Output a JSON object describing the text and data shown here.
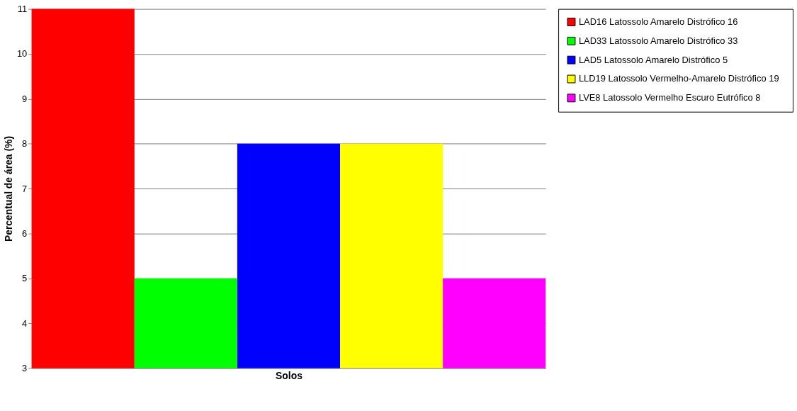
{
  "chart_data": {
    "type": "bar",
    "xlabel": "Solos",
    "ylabel": "Percentual de área (%)",
    "categories": [
      null,
      null,
      null,
      null,
      null
    ],
    "series": [
      {
        "name": "LAD16   Latossolo Amarelo Distrófico 16",
        "color": "#ff0000",
        "values": [
          11,
          null,
          null,
          null,
          null
        ]
      },
      {
        "name": "LAD33   Latossolo Amarelo Distrófico 33",
        "color": "#00ff00",
        "values": [
          null,
          5,
          null,
          null,
          null
        ]
      },
      {
        "name": "LAD5   Latossolo Amarelo Distrófico 5",
        "color": "#0000ff",
        "values": [
          null,
          null,
          8,
          null,
          null
        ]
      },
      {
        "name": "LLD19   Latossolo Vermelho-Amarelo Distrófico 19",
        "color": "#ffff00",
        "values": [
          null,
          null,
          null,
          8,
          null
        ]
      },
      {
        "name": "LVE8   Latossolo Vermelho Escuro Eutrófico 8",
        "color": "#ff00ff",
        "values": [
          null,
          null,
          null,
          null,
          5
        ]
      }
    ],
    "ylim": [
      3,
      11
    ],
    "yticks": [
      3,
      4,
      5,
      6,
      7,
      8,
      9,
      10,
      11
    ],
    "grid": "y",
    "legend": "top right",
    "tick_labels": "y"
  }
}
